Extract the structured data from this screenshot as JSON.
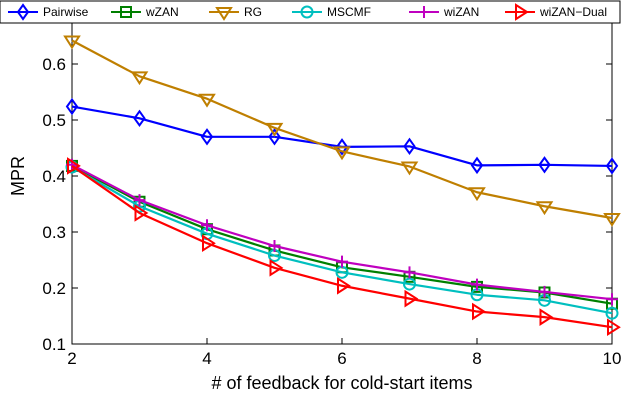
{
  "chart_data": {
    "type": "line",
    "xlabel": "# of feedback for cold-start items",
    "ylabel": "MPR",
    "xlim": [
      2,
      10
    ],
    "ylim": [
      0.1,
      0.7
    ],
    "xticks": [
      2,
      4,
      6,
      8,
      10
    ],
    "yticks": [
      0.1,
      0.2,
      0.3,
      0.4,
      0.5,
      0.6
    ],
    "ytick_labels": [
      "0.1",
      "0.2",
      "0.3",
      "0.4",
      "0.5",
      "0.6"
    ],
    "grid": false,
    "legend_position": "top",
    "x": [
      2,
      3,
      4,
      5,
      6,
      7,
      8,
      9,
      10
    ],
    "series": [
      {
        "name": "Pairwise",
        "color": "#0000ff",
        "marker": "diamond",
        "values": [
          0.524,
          0.503,
          0.47,
          0.47,
          0.452,
          0.453,
          0.419,
          0.42,
          0.418
        ]
      },
      {
        "name": "wZAN",
        "color": "#007f00",
        "marker": "square",
        "values": [
          0.418,
          0.354,
          0.305,
          0.267,
          0.237,
          0.22,
          0.202,
          0.192,
          0.172
        ]
      },
      {
        "name": "RG",
        "color": "#bf7f00",
        "marker": "triangle-down",
        "values": [
          0.642,
          0.578,
          0.538,
          0.486,
          0.444,
          0.417,
          0.371,
          0.346,
          0.325
        ]
      },
      {
        "name": "MSCMF",
        "color": "#00bfbf",
        "marker": "circle",
        "values": [
          0.416,
          0.346,
          0.297,
          0.258,
          0.228,
          0.207,
          0.188,
          0.178,
          0.155
        ]
      },
      {
        "name": "wiZAN",
        "color": "#bf00bf",
        "marker": "plus",
        "values": [
          0.42,
          0.357,
          0.312,
          0.275,
          0.247,
          0.228,
          0.206,
          0.193,
          0.18
        ]
      },
      {
        "name": "wiZAN−Dual",
        "color": "#ff0000",
        "marker": "triangle-right",
        "values": [
          0.418,
          0.334,
          0.28,
          0.236,
          0.204,
          0.181,
          0.158,
          0.148,
          0.13
        ]
      }
    ]
  }
}
